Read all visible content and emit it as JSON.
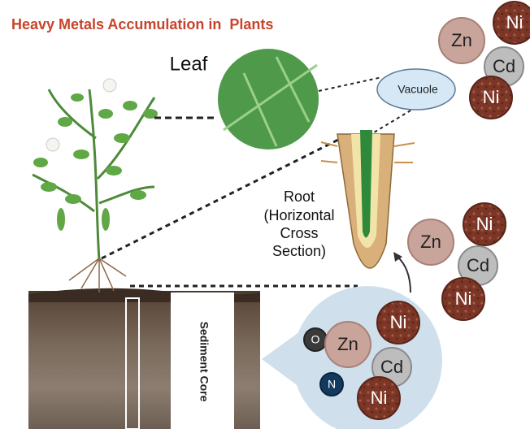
{
  "title": "Heavy Metals Accumulation in  Plants",
  "labels": {
    "leaf": "Leaf",
    "vacuole": "Vacuole",
    "root": [
      "Root",
      "(Horizontal",
      "Cross",
      "Section)"
    ],
    "sediment_core": "Sediment Core"
  },
  "clusters": [
    {
      "atoms": [
        "Zn",
        "Ni",
        "Cd",
        "Ni"
      ]
    },
    {
      "atoms": [
        "Zn",
        "Ni",
        "Cd",
        "Ni"
      ]
    },
    {
      "atoms": [
        "O",
        "Zn",
        "Ni",
        "Cd",
        "N",
        "Ni"
      ]
    }
  ]
}
